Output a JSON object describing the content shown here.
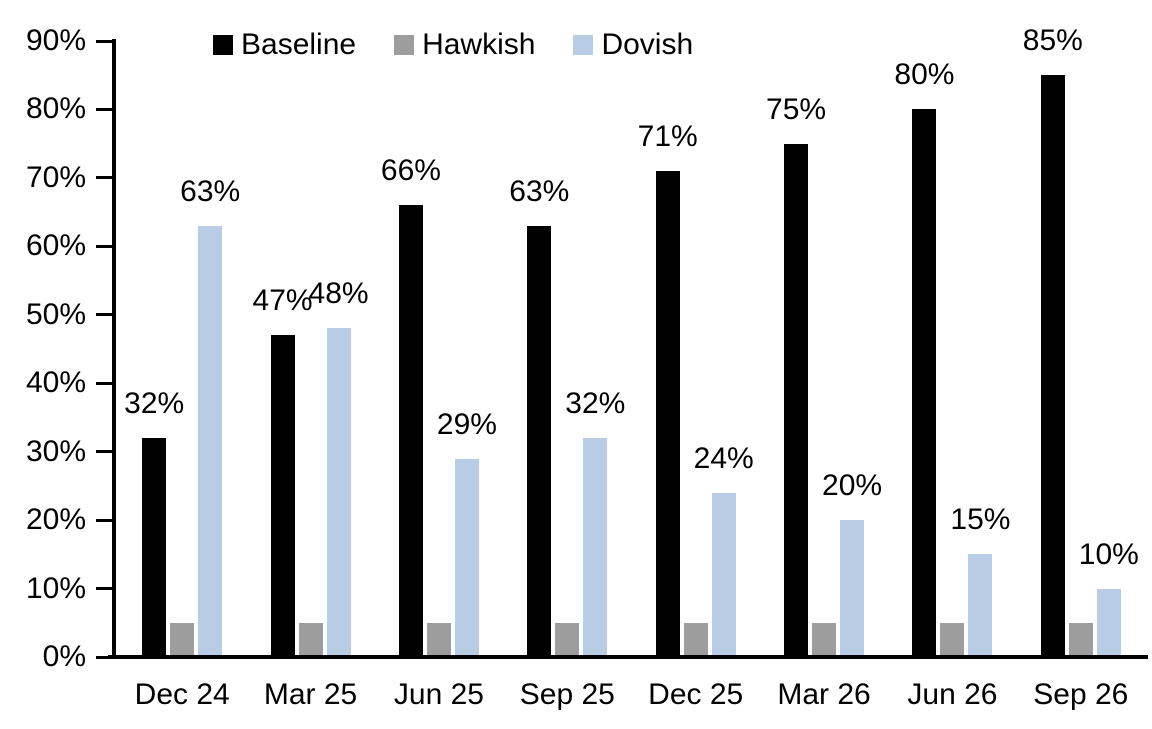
{
  "chart_data": {
    "type": "bar",
    "title": "",
    "xlabel": "",
    "ylabel": "",
    "categories": [
      "Dec 24",
      "Mar 25",
      "Jun 25",
      "Sep 25",
      "Dec 25",
      "Mar 26",
      "Jun 26",
      "Sep 26"
    ],
    "series": [
      {
        "name": "Baseline",
        "color": "#000000",
        "show_labels": true,
        "values": [
          32,
          47,
          66,
          63,
          71,
          75,
          80,
          85
        ]
      },
      {
        "name": "Hawkish",
        "color": "#9d9d9d",
        "show_labels": false,
        "values": [
          5,
          5,
          5,
          5,
          5,
          5,
          5,
          5
        ]
      },
      {
        "name": "Dovish",
        "color": "#b8cde5",
        "show_labels": true,
        "values": [
          63,
          48,
          29,
          32,
          24,
          20,
          15,
          10
        ]
      }
    ],
    "ylim": [
      0,
      90
    ],
    "y_tick_step": 10,
    "y_tick_labels": [
      "0%",
      "10%",
      "20%",
      "30%",
      "40%",
      "50%",
      "60%",
      "70%",
      "80%",
      "90%"
    ],
    "data_label_format": "{v}%",
    "grid": false,
    "legend_position": "top",
    "background_color": "#ffffff",
    "text_color": "#000000"
  }
}
